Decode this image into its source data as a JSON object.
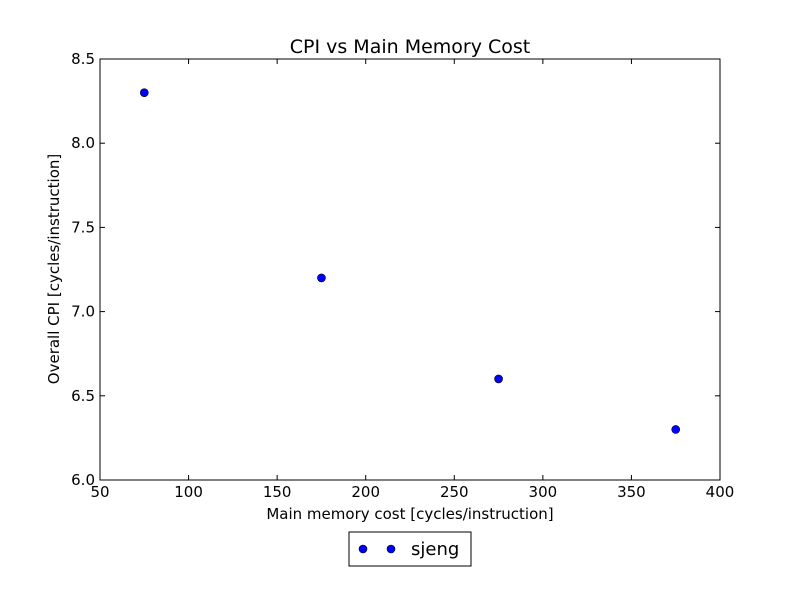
{
  "chart_data": {
    "type": "scatter",
    "title": "CPI vs Main Memory Cost",
    "xlabel": "Main memory cost [cycles/instruction]",
    "ylabel": "Overall CPI [cycles/instruction]",
    "xlim": [
      50,
      400
    ],
    "ylim": [
      6.0,
      8.5
    ],
    "xticks": [
      50,
      100,
      150,
      200,
      250,
      300,
      350,
      400
    ],
    "yticks": [
      6.0,
      6.5,
      7.0,
      7.5,
      8.0,
      8.5
    ],
    "xtick_labels": [
      "50",
      "100",
      "150",
      "200",
      "250",
      "300",
      "350",
      "400"
    ],
    "ytick_labels": [
      "6.0",
      "6.5",
      "7.0",
      "7.5",
      "8.0",
      "8.5"
    ],
    "grid": false,
    "legend_placement": "bottom-center-outside",
    "series": [
      {
        "name": "sjeng",
        "color": "#0000ff",
        "marker": "circle",
        "x": [
          75,
          175,
          275,
          375
        ],
        "y": [
          8.3,
          7.2,
          6.6,
          6.3
        ]
      }
    ]
  }
}
